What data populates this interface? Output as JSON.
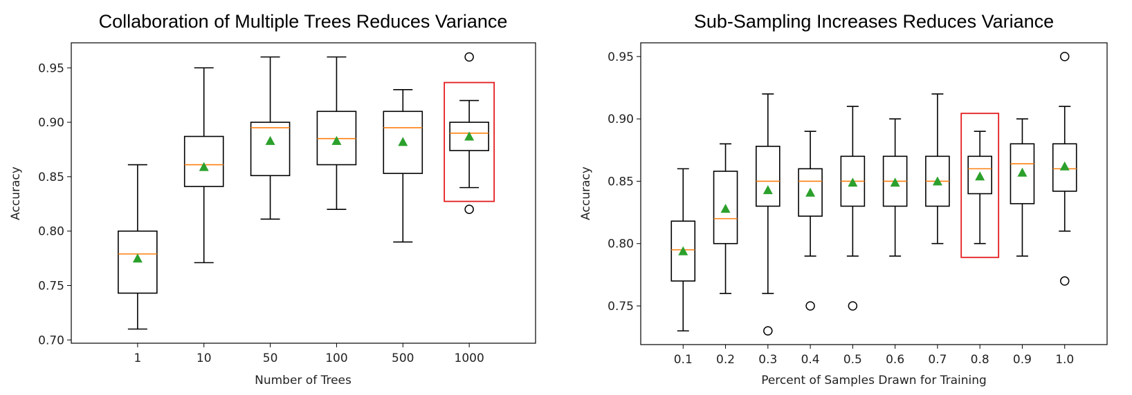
{
  "colors": {
    "box": "#000000",
    "median": "#ff7f0e",
    "mean": "#2ca02c",
    "highlight": "#e31a1c"
  },
  "chart_data": [
    {
      "type": "box",
      "title": "Collaboration of Multiple Trees Reduces Variance",
      "xlabel": "Number of Trees",
      "ylabel": "Accuracy",
      "ylim": [
        0.697,
        0.973
      ],
      "yticks": [
        "0.70",
        "0.75",
        "0.80",
        "0.85",
        "0.90",
        "0.95"
      ],
      "categories": [
        "1",
        "10",
        "50",
        "100",
        "500",
        "1000"
      ],
      "highlight_category": "1000",
      "boxes": [
        {
          "whisker_low": 0.71,
          "q1": 0.743,
          "median": 0.779,
          "q3": 0.8,
          "whisker_high": 0.861,
          "mean": 0.775,
          "outliers": []
        },
        {
          "whisker_low": 0.771,
          "q1": 0.841,
          "median": 0.861,
          "q3": 0.887,
          "whisker_high": 0.95,
          "mean": 0.859,
          "outliers": []
        },
        {
          "whisker_low": 0.811,
          "q1": 0.851,
          "median": 0.895,
          "q3": 0.9,
          "whisker_high": 0.96,
          "mean": 0.883,
          "outliers": []
        },
        {
          "whisker_low": 0.82,
          "q1": 0.861,
          "median": 0.885,
          "q3": 0.91,
          "whisker_high": 0.96,
          "mean": 0.883,
          "outliers": []
        },
        {
          "whisker_low": 0.79,
          "q1": 0.853,
          "median": 0.895,
          "q3": 0.91,
          "whisker_high": 0.93,
          "mean": 0.882,
          "outliers": []
        },
        {
          "whisker_low": 0.84,
          "q1": 0.874,
          "median": 0.89,
          "q3": 0.9,
          "whisker_high": 0.92,
          "mean": 0.887,
          "outliers": [
            0.96,
            0.82
          ]
        }
      ]
    },
    {
      "type": "box",
      "title": "Sub-Sampling Increases Reduces Variance",
      "xlabel": "Percent of Samples Drawn for Training",
      "ylabel": "Accuracy",
      "ylim": [
        0.719,
        0.961
      ],
      "yticks": [
        "0.75",
        "0.80",
        "0.85",
        "0.90",
        "0.95"
      ],
      "categories": [
        "0.1",
        "0.2",
        "0.3",
        "0.4",
        "0.5",
        "0.6",
        "0.7",
        "0.8",
        "0.9",
        "1.0"
      ],
      "highlight_category": "0.8",
      "boxes": [
        {
          "whisker_low": 0.73,
          "q1": 0.77,
          "median": 0.795,
          "q3": 0.818,
          "whisker_high": 0.86,
          "mean": 0.794,
          "outliers": []
        },
        {
          "whisker_low": 0.76,
          "q1": 0.8,
          "median": 0.82,
          "q3": 0.858,
          "whisker_high": 0.88,
          "mean": 0.828,
          "outliers": []
        },
        {
          "whisker_low": 0.76,
          "q1": 0.83,
          "median": 0.85,
          "q3": 0.878,
          "whisker_high": 0.92,
          "mean": 0.843,
          "outliers": [
            0.73
          ]
        },
        {
          "whisker_low": 0.79,
          "q1": 0.822,
          "median": 0.85,
          "q3": 0.86,
          "whisker_high": 0.89,
          "mean": 0.841,
          "outliers": [
            0.75
          ]
        },
        {
          "whisker_low": 0.79,
          "q1": 0.83,
          "median": 0.85,
          "q3": 0.87,
          "whisker_high": 0.91,
          "mean": 0.849,
          "outliers": [
            0.75
          ]
        },
        {
          "whisker_low": 0.79,
          "q1": 0.83,
          "median": 0.85,
          "q3": 0.87,
          "whisker_high": 0.9,
          "mean": 0.849,
          "outliers": []
        },
        {
          "whisker_low": 0.8,
          "q1": 0.83,
          "median": 0.85,
          "q3": 0.87,
          "whisker_high": 0.92,
          "mean": 0.85,
          "outliers": []
        },
        {
          "whisker_low": 0.8,
          "q1": 0.84,
          "median": 0.86,
          "q3": 0.87,
          "whisker_high": 0.89,
          "mean": 0.854,
          "outliers": []
        },
        {
          "whisker_low": 0.79,
          "q1": 0.832,
          "median": 0.864,
          "q3": 0.88,
          "whisker_high": 0.9,
          "mean": 0.857,
          "outliers": []
        },
        {
          "whisker_low": 0.81,
          "q1": 0.842,
          "median": 0.86,
          "q3": 0.88,
          "whisker_high": 0.91,
          "mean": 0.862,
          "outliers": [
            0.95,
            0.77
          ]
        }
      ]
    }
  ]
}
